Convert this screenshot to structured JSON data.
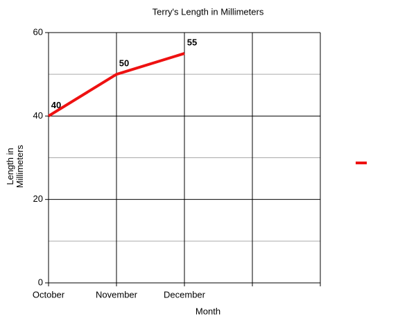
{
  "chart_data": {
    "type": "line",
    "title": "Terry's Length in Millimeters",
    "xlabel": "Month",
    "ylabel": "Length in Millimeters",
    "categories": [
      "October",
      "November",
      "December",
      null,
      null
    ],
    "series": [
      {
        "color": "#ee1111",
        "values": [
          40,
          50,
          55,
          null,
          null
        ]
      }
    ],
    "ylim": [
      0,
      60
    ],
    "yticks": [
      0,
      20,
      40,
      60
    ],
    "minor_yticks": [
      10,
      30,
      50
    ],
    "grid": true,
    "data_labels": true,
    "legend": "right"
  }
}
